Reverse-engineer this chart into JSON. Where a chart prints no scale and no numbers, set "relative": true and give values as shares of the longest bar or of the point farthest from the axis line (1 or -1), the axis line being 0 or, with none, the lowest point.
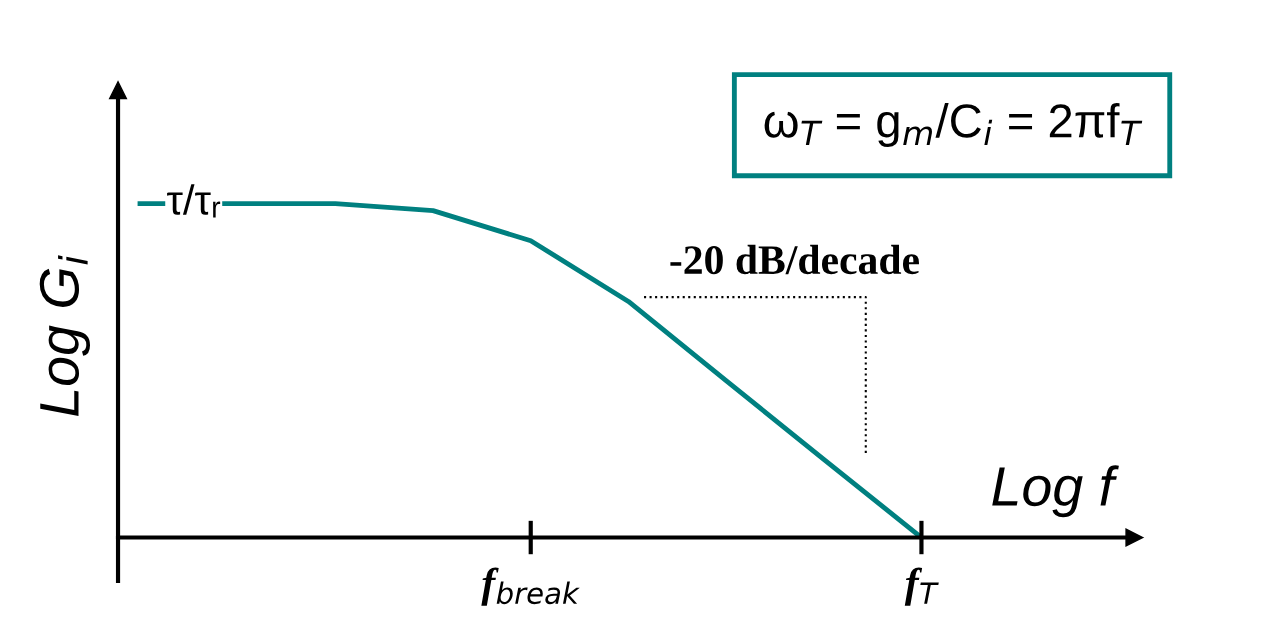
{
  "chart_data": {
    "type": "line",
    "relative": true,
    "xlabel": "Log f",
    "ylabel": "Log G$_{i}$",
    "categories": [
      null,
      null,
      null,
      null,
      "f$_{break}$",
      null,
      null,
      null,
      "f$_{T}$",
      null,
      null
    ],
    "series": [
      {
        "color": "#008080",
        "values": [
          1.0,
          1.0,
          1.0,
          0.979,
          0.889,
          0.707,
          0.47,
          0.234,
          0.0,
          null,
          null
        ]
      }
    ],
    "tick_labels": "x",
    "legend": false,
    "marker": "none",
    "line_style": "solid",
    "annotations": [
      "τ/τᵣ",
      "ω$_{T}$ = g$_{m}$/C$_{i}$ = 2πf$_{T}$",
      "-20 dB/decade"
    ]
  }
}
